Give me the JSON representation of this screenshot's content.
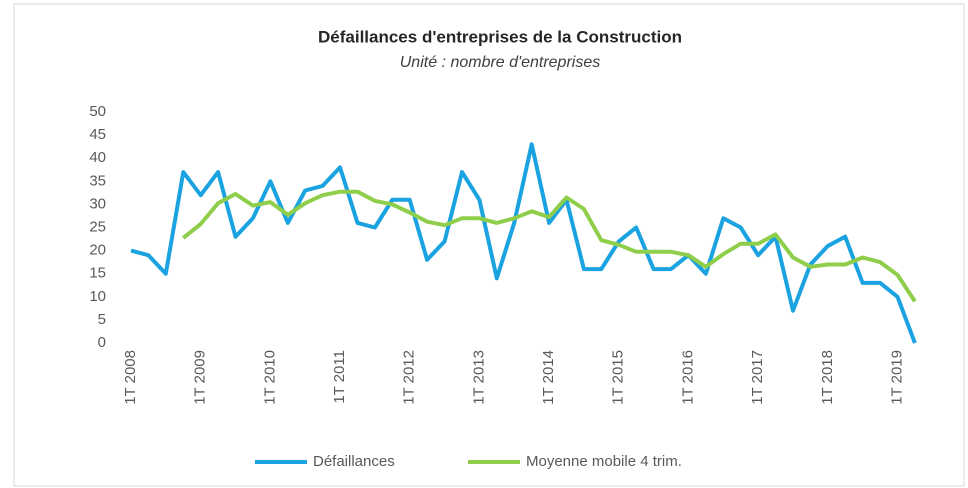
{
  "chart_data": {
    "type": "line",
    "title": "Défaillances  d'entreprises de la Construction",
    "subtitle": "Unité : nombre d'entreprises",
    "categories": [
      "1T 2008",
      null,
      null,
      null,
      "1T 2009",
      null,
      null,
      null,
      "1T 2010",
      null,
      null,
      null,
      "1T 2011",
      null,
      null,
      null,
      "1T 2012",
      null,
      null,
      null,
      "1T 2013",
      null,
      null,
      null,
      "1T 2014",
      null,
      null,
      null,
      "1T 2015",
      null,
      null,
      null,
      "1T 2016",
      null,
      null,
      null,
      "1T 2017",
      null,
      null,
      null,
      "1T 2018",
      null,
      null,
      null,
      "1T 2019",
      null
    ],
    "series": [
      {
        "name": "Défaillances",
        "color": "#1aa3e0",
        "values": [
          20,
          19,
          15,
          37,
          32,
          37,
          23,
          27,
          35,
          26,
          33,
          34,
          38,
          26,
          25,
          31,
          31,
          18,
          22,
          37,
          31,
          14,
          26,
          43,
          26,
          31,
          16,
          16,
          22,
          25,
          16,
          16,
          19,
          15,
          27,
          25,
          19,
          23,
          7,
          17,
          21,
          23,
          13,
          13,
          10,
          0
        ]
      },
      {
        "name": "Moyenne mobile 4 trim.",
        "color": "#8fce4a",
        "values": [
          null,
          null,
          null,
          22.75,
          25.75,
          30.25,
          32.25,
          29.75,
          30.5,
          27.75,
          30.25,
          32,
          32.75,
          32.75,
          30.75,
          30,
          28.25,
          26.25,
          25.5,
          27,
          27,
          26,
          27,
          28.5,
          27.25,
          31.5,
          29,
          22.25,
          21.25,
          19.75,
          19.75,
          19.75,
          19,
          16.5,
          19.25,
          21.5,
          21.5,
          23.5,
          18.5,
          16.5,
          17,
          17,
          18.5,
          17.5,
          14.75,
          9
        ]
      }
    ],
    "ylim": [
      0,
      50
    ],
    "yticks": [
      0,
      5,
      10,
      15,
      20,
      25,
      30,
      35,
      40,
      45,
      50
    ],
    "grid": false,
    "legend": "bottom"
  }
}
